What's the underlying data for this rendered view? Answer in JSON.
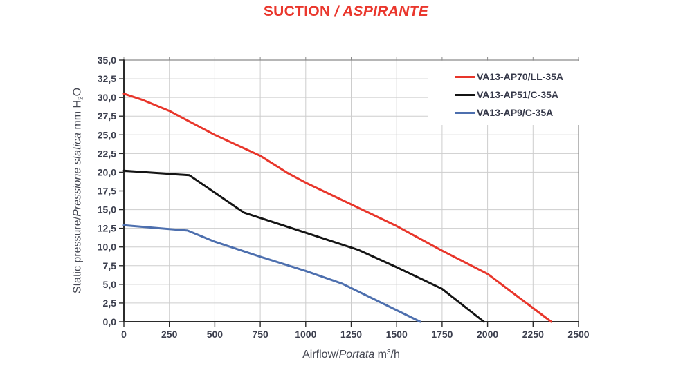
{
  "title": {
    "main": "SUCTION",
    "rest": " / ASPIRANTE",
    "color": "#ea372d"
  },
  "x_axis": {
    "label_en": "Airflow/",
    "label_it": "Portata",
    "unit_prefix": " m",
    "unit_sup": "3",
    "unit_suffix": "/h"
  },
  "y_axis": {
    "label_en": "Static pressure/",
    "label_it": "Pressione statica",
    "unit_prefix": " mm H",
    "unit_sub": "2",
    "unit_suffix": "O"
  },
  "style": {
    "grid_color": "#cdcdcd",
    "axis_color": "#2b2b2b",
    "outer_border_color": "#8a8a8a",
    "tick_label_color": "#3c3f4e"
  },
  "chart_data": {
    "type": "line",
    "title": "SUCTION / ASPIRANTE",
    "xlabel": "Airflow/Portata m³/h",
    "ylabel": "Static pressure/Pressione statica mm H₂O",
    "xlim": [
      0,
      2500
    ],
    "ylim": [
      0,
      35
    ],
    "x_tick_step": 250,
    "y_tick_step": 2.5,
    "grid": true,
    "legend_position": "top-right-inside",
    "x_ticks": [
      "0",
      "250",
      "500",
      "750",
      "1000",
      "1250",
      "1500",
      "1750",
      "2000",
      "2250",
      "2500"
    ],
    "y_ticks": [
      "0,0",
      "2,5",
      "5,0",
      "7,5",
      "10,0",
      "12,5",
      "15,0",
      "17,5",
      "20,0",
      "22,5",
      "25,0",
      "27,5",
      "30,0",
      "32,5",
      "35,0"
    ],
    "series": [
      {
        "name": "VA13-AP70/LL-35A",
        "color": "#e8352a",
        "points": [
          [
            0,
            30.5
          ],
          [
            100,
            29.7
          ],
          [
            250,
            28.2
          ],
          [
            500,
            25.0
          ],
          [
            750,
            22.2
          ],
          [
            900,
            19.9
          ],
          [
            1000,
            18.6
          ],
          [
            1250,
            15.7
          ],
          [
            1500,
            12.8
          ],
          [
            1750,
            9.5
          ],
          [
            2000,
            6.4
          ],
          [
            2350,
            0
          ]
        ]
      },
      {
        "name": "VA13-AP51/C-35A",
        "color": "#141414",
        "points": [
          [
            0,
            20.2
          ],
          [
            360,
            19.6
          ],
          [
            660,
            14.6
          ],
          [
            1000,
            11.9
          ],
          [
            1290,
            9.6
          ],
          [
            1500,
            7.3
          ],
          [
            1750,
            4.4
          ],
          [
            1980,
            0
          ]
        ]
      },
      {
        "name": "VA13-AP9/C-35A",
        "color": "#4d6fae",
        "points": [
          [
            0,
            12.9
          ],
          [
            350,
            12.2
          ],
          [
            500,
            10.7
          ],
          [
            750,
            8.7
          ],
          [
            1000,
            6.8
          ],
          [
            1200,
            5.1
          ],
          [
            1630,
            0
          ]
        ]
      }
    ]
  }
}
